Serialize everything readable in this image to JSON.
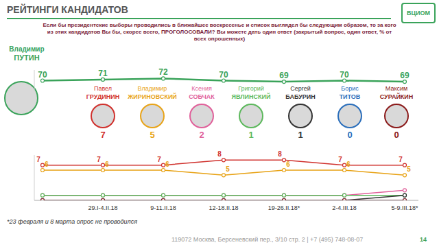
{
  "header": {
    "title": "РЕЙТИНГИ КАНДИДАТОВ",
    "logo": "ВЦИОМ"
  },
  "question": "Если бы президентские выборы проводились в ближайшее воскресенье и список выглядел бы следующим образом, то за кого из этих кандидатов Вы бы, скорее всего, ПРОГОЛОСОВАЛИ? Вы можете дать один ответ (закрытый вопрос, один ответ, % от всех опрошенных)",
  "footnote": "*23 февраля и 8 марта опрос не проводился",
  "footer": "119072 Москва, Берсеневский пер., 3/10 стр. 2 | +7 (495) 748-08-07",
  "page": 14,
  "chart_data": [
    {
      "type": "line",
      "categories": [
        null,
        "29.I-4.II.18",
        "9-11.II.18",
        "12-18.II.18",
        "19-26.II.18*",
        "2-4.III.18",
        "5-9.III.18*"
      ],
      "ylim": [
        60,
        80
      ],
      "tick_labels": false,
      "series": [
        {
          "first_name": "Владимир",
          "name": "ПУТИН",
          "color": "#3aa35a",
          "values": [
            70,
            71,
            72,
            70,
            69,
            70,
            69
          ],
          "data_labels": true
        }
      ]
    },
    {
      "type": "line",
      "categories": [
        null,
        "29.I-4.II.18",
        "9-11.II.18",
        "12-18.II.18",
        "19-26.II.18*",
        "2-4.III.18",
        "5-9.III.18*"
      ],
      "ylim": [
        0,
        9
      ],
      "tick_labels": "x",
      "series": [
        {
          "first_name": "Павел",
          "name": "ГРУДИНИН",
          "color": "#d0312d",
          "values": [
            7,
            7,
            7,
            8,
            8,
            7,
            7
          ],
          "data_labels": true
        },
        {
          "first_name": "Владимир",
          "name": "ЖИРИНОВСКИЙ",
          "color": "#e8a317",
          "values": [
            6,
            6,
            6,
            5,
            6,
            6,
            5
          ],
          "data_labels": true
        },
        {
          "first_name": "Ксения",
          "name": "СОБЧАК",
          "color": "#e0609a",
          "values": [
            1,
            1,
            1,
            1,
            1,
            1,
            2
          ]
        },
        {
          "first_name": "Григорий",
          "name": "ЯВЛИНСКИЙ",
          "color": "#5cb85c",
          "values": [
            1,
            1,
            1,
            1,
            1,
            1,
            1
          ]
        },
        {
          "first_name": "Сергей",
          "name": "БАБУРИН",
          "color": "#333333",
          "values": [
            0,
            0,
            0,
            0,
            0,
            0,
            1
          ]
        },
        {
          "first_name": "Борис",
          "name": "ТИТОВ",
          "color": "#2a6ebb",
          "values": [
            0,
            0,
            0,
            0,
            0,
            0,
            0
          ]
        },
        {
          "first_name": "Максим",
          "name": "СУРАЙКИН",
          "color": "#8b1a1a",
          "values": [
            0,
            0,
            0,
            0,
            0,
            0,
            0
          ]
        }
      ]
    }
  ]
}
